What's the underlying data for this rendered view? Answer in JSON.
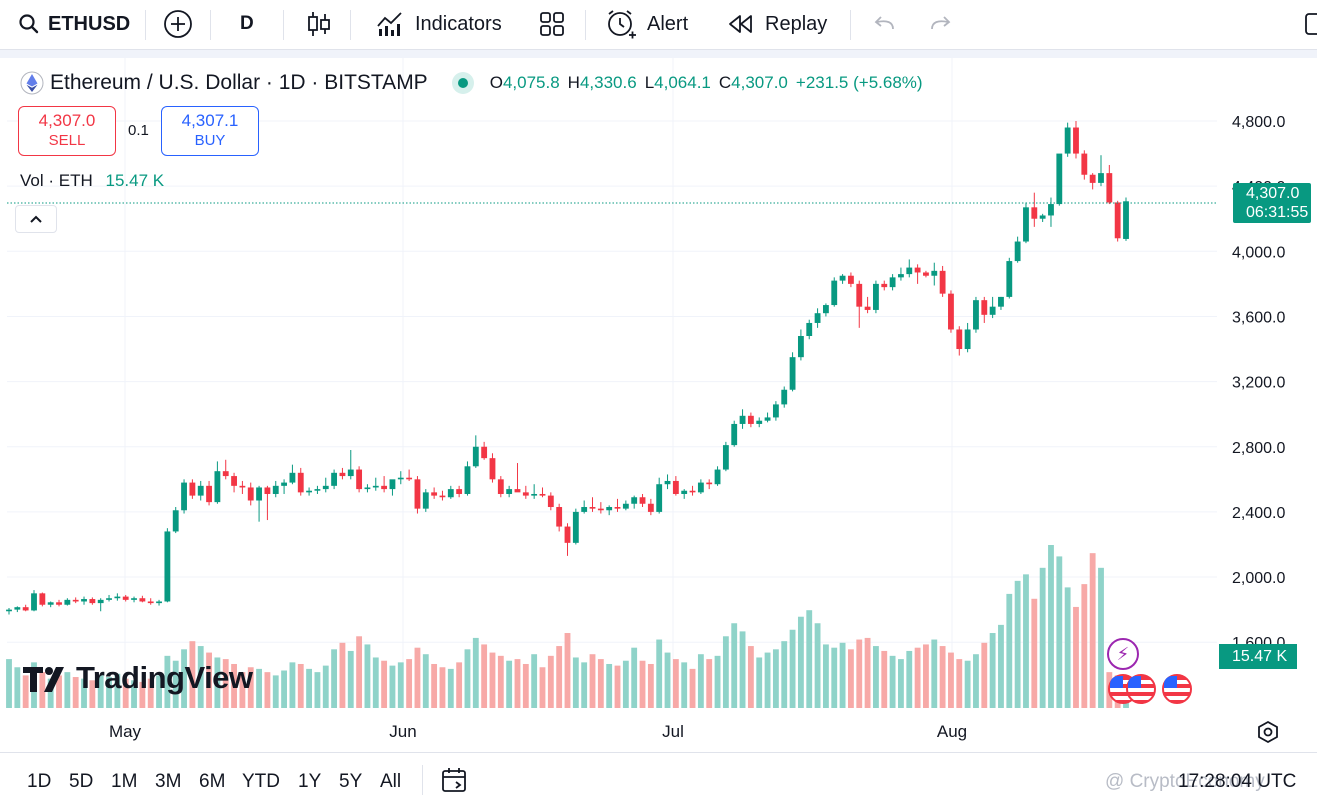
{
  "toolbar": {
    "symbol": "ETHUSD",
    "interval": "D",
    "indicators_label": "Indicators",
    "alert_label": "Alert",
    "replay_label": "Replay"
  },
  "legend": {
    "title": "Ethereum / U.S. Dollar · 1D · BITSTAMP",
    "o_key": "O",
    "o_val": "4,075.8",
    "h_key": "H",
    "h_val": "4,330.6",
    "l_key": "L",
    "l_val": "4,064.1",
    "c_key": "C",
    "c_val": "4,307.0",
    "change": "+231.5 (+5.68%)"
  },
  "trade": {
    "sell_price": "4,307.0",
    "sell_label": "SELL",
    "spread": "0.1",
    "buy_price": "4,307.1",
    "buy_label": "BUY"
  },
  "volume": {
    "label": "Vol · ETH",
    "value": "15.47 K"
  },
  "price_axis": {
    "ticks": [
      "4,800.0",
      "4,400.0",
      "4,000.0",
      "3,600.0",
      "3,200.0",
      "2,800.0",
      "2,400.0",
      "2,000.0",
      "1,600.0"
    ],
    "last_price": "4,307.0",
    "countdown": "06:31:55",
    "volume_label": "15.47 K"
  },
  "time_axis": {
    "labels": [
      "May",
      "Jun",
      "Jul",
      "Aug"
    ]
  },
  "logo": {
    "text": "TradingView"
  },
  "ranges": [
    "1D",
    "5D",
    "1M",
    "3M",
    "6M",
    "YTD",
    "1Y",
    "5Y",
    "All"
  ],
  "clock": "17:28:04 UTC",
  "watermark": "@ CryptoEconomy",
  "colors": {
    "up": "#089981",
    "down": "#f23645",
    "up_vol": "#8fd3c9",
    "down_vol": "#f7a9a7",
    "accent_blue": "#2962ff"
  },
  "chart_data": {
    "type": "candlestick",
    "x_labels": [
      "May",
      "Jun",
      "Jul",
      "Aug"
    ],
    "ylim": [
      1600,
      4800
    ],
    "candles": [
      [
        1790,
        1810,
        1770,
        1800
      ],
      [
        1800,
        1820,
        1785,
        1815
      ],
      [
        1815,
        1830,
        1790,
        1795
      ],
      [
        1795,
        1920,
        1790,
        1900
      ],
      [
        1900,
        1905,
        1820,
        1830
      ],
      [
        1830,
        1850,
        1815,
        1845
      ],
      [
        1845,
        1860,
        1820,
        1830
      ],
      [
        1830,
        1870,
        1825,
        1860
      ],
      [
        1860,
        1875,
        1840,
        1850
      ],
      [
        1850,
        1880,
        1830,
        1865
      ],
      [
        1865,
        1875,
        1830,
        1840
      ],
      [
        1840,
        1870,
        1790,
        1860
      ],
      [
        1860,
        1890,
        1850,
        1870
      ],
      [
        1870,
        1900,
        1855,
        1880
      ],
      [
        1880,
        1890,
        1850,
        1860
      ],
      [
        1860,
        1880,
        1845,
        1870
      ],
      [
        1870,
        1885,
        1845,
        1850
      ],
      [
        1850,
        1870,
        1830,
        1840
      ],
      [
        1840,
        1860,
        1825,
        1850
      ],
      [
        1850,
        2300,
        1845,
        2280
      ],
      [
        2280,
        2430,
        2270,
        2410
      ],
      [
        2410,
        2600,
        2390,
        2580
      ],
      [
        2580,
        2600,
        2480,
        2500
      ],
      [
        2500,
        2590,
        2470,
        2560
      ],
      [
        2560,
        2590,
        2440,
        2460
      ],
      [
        2460,
        2710,
        2450,
        2650
      ],
      [
        2650,
        2720,
        2600,
        2620
      ],
      [
        2620,
        2640,
        2520,
        2560
      ],
      [
        2560,
        2590,
        2510,
        2550
      ],
      [
        2550,
        2580,
        2440,
        2470
      ],
      [
        2470,
        2560,
        2340,
        2550
      ],
      [
        2550,
        2560,
        2350,
        2510
      ],
      [
        2510,
        2590,
        2490,
        2560
      ],
      [
        2560,
        2600,
        2510,
        2580
      ],
      [
        2580,
        2690,
        2570,
        2640
      ],
      [
        2640,
        2670,
        2500,
        2520
      ],
      [
        2520,
        2550,
        2500,
        2530
      ],
      [
        2530,
        2560,
        2510,
        2540
      ],
      [
        2540,
        2610,
        2520,
        2560
      ],
      [
        2560,
        2660,
        2540,
        2640
      ],
      [
        2640,
        2670,
        2600,
        2620
      ],
      [
        2620,
        2780,
        2600,
        2660
      ],
      [
        2660,
        2680,
        2520,
        2540
      ],
      [
        2540,
        2570,
        2520,
        2550
      ],
      [
        2550,
        2610,
        2530,
        2560
      ],
      [
        2560,
        2620,
        2520,
        2540
      ],
      [
        2540,
        2570,
        2500,
        2600
      ],
      [
        2600,
        2650,
        2570,
        2610
      ],
      [
        2610,
        2660,
        2590,
        2600
      ],
      [
        2600,
        2620,
        2390,
        2420
      ],
      [
        2420,
        2540,
        2400,
        2520
      ],
      [
        2520,
        2550,
        2480,
        2500
      ],
      [
        2500,
        2530,
        2470,
        2490
      ],
      [
        2490,
        2560,
        2480,
        2540
      ],
      [
        2540,
        2560,
        2490,
        2510
      ],
      [
        2510,
        2710,
        2500,
        2680
      ],
      [
        2680,
        2870,
        2670,
        2800
      ],
      [
        2800,
        2830,
        2720,
        2730
      ],
      [
        2730,
        2760,
        2580,
        2600
      ],
      [
        2600,
        2620,
        2490,
        2510
      ],
      [
        2510,
        2560,
        2490,
        2540
      ],
      [
        2540,
        2700,
        2530,
        2520
      ],
      [
        2520,
        2560,
        2480,
        2500
      ],
      [
        2500,
        2570,
        2480,
        2510
      ],
      [
        2510,
        2550,
        2490,
        2500
      ],
      [
        2500,
        2520,
        2410,
        2430
      ],
      [
        2430,
        2450,
        2280,
        2310
      ],
      [
        2310,
        2330,
        2130,
        2210
      ],
      [
        2210,
        2420,
        2200,
        2400
      ],
      [
        2400,
        2470,
        2390,
        2430
      ],
      [
        2430,
        2490,
        2400,
        2420
      ],
      [
        2420,
        2460,
        2390,
        2410
      ],
      [
        2410,
        2440,
        2380,
        2430
      ],
      [
        2430,
        2480,
        2400,
        2420
      ],
      [
        2420,
        2470,
        2410,
        2450
      ],
      [
        2450,
        2500,
        2420,
        2490
      ],
      [
        2490,
        2510,
        2430,
        2450
      ],
      [
        2450,
        2480,
        2380,
        2400
      ],
      [
        2400,
        2610,
        2390,
        2570
      ],
      [
        2570,
        2630,
        2540,
        2590
      ],
      [
        2590,
        2620,
        2500,
        2510
      ],
      [
        2510,
        2540,
        2480,
        2530
      ],
      [
        2530,
        2560,
        2500,
        2520
      ],
      [
        2520,
        2600,
        2510,
        2580
      ],
      [
        2580,
        2600,
        2540,
        2570
      ],
      [
        2570,
        2680,
        2560,
        2660
      ],
      [
        2660,
        2830,
        2650,
        2810
      ],
      [
        2810,
        2960,
        2800,
        2940
      ],
      [
        2940,
        3030,
        2910,
        2990
      ],
      [
        2990,
        3010,
        2920,
        2940
      ],
      [
        2940,
        2980,
        2920,
        2960
      ],
      [
        2960,
        3010,
        2950,
        2980
      ],
      [
        2980,
        3080,
        2960,
        3060
      ],
      [
        3060,
        3170,
        3040,
        3150
      ],
      [
        3150,
        3380,
        3140,
        3350
      ],
      [
        3350,
        3520,
        3330,
        3480
      ],
      [
        3480,
        3580,
        3460,
        3560
      ],
      [
        3560,
        3650,
        3530,
        3620
      ],
      [
        3620,
        3680,
        3600,
        3670
      ],
      [
        3670,
        3840,
        3660,
        3820
      ],
      [
        3820,
        3860,
        3800,
        3850
      ],
      [
        3850,
        3870,
        3780,
        3800
      ],
      [
        3800,
        3820,
        3530,
        3660
      ],
      [
        3660,
        3720,
        3620,
        3640
      ],
      [
        3640,
        3820,
        3620,
        3800
      ],
      [
        3800,
        3820,
        3760,
        3780
      ],
      [
        3780,
        3860,
        3760,
        3840
      ],
      [
        3840,
        3900,
        3820,
        3860
      ],
      [
        3860,
        3950,
        3840,
        3900
      ],
      [
        3900,
        3920,
        3800,
        3870
      ],
      [
        3870,
        3880,
        3840,
        3850
      ],
      [
        3850,
        3930,
        3790,
        3880
      ],
      [
        3880,
        3910,
        3720,
        3740
      ],
      [
        3740,
        3760,
        3500,
        3520
      ],
      [
        3520,
        3540,
        3360,
        3400
      ],
      [
        3400,
        3560,
        3380,
        3520
      ],
      [
        3520,
        3720,
        3500,
        3700
      ],
      [
        3700,
        3720,
        3560,
        3610
      ],
      [
        3610,
        3720,
        3590,
        3660
      ],
      [
        3660,
        3720,
        3640,
        3720
      ],
      [
        3720,
        3960,
        3710,
        3940
      ],
      [
        3940,
        4090,
        3930,
        4060
      ],
      [
        4060,
        4300,
        4050,
        4270
      ],
      [
        4270,
        4360,
        4150,
        4200
      ],
      [
        4200,
        4230,
        4180,
        4220
      ],
      [
        4220,
        4330,
        4150,
        4290
      ],
      [
        4290,
        4580,
        4280,
        4600
      ],
      [
        4600,
        4790,
        4580,
        4760
      ],
      [
        4760,
        4800,
        4570,
        4600
      ],
      [
        4600,
        4620,
        4440,
        4470
      ],
      [
        4470,
        4480,
        4380,
        4420
      ],
      [
        4420,
        4590,
        4400,
        4480
      ],
      [
        4480,
        4530,
        4290,
        4300
      ],
      [
        4300,
        4310,
        4060,
        4080
      ],
      [
        4075.8,
        4330.6,
        4064.1,
        4307.0
      ]
    ],
    "volumes": [
      0.3,
      0.25,
      0.2,
      0.28,
      0.22,
      0.18,
      0.2,
      0.22,
      0.19,
      0.18,
      0.17,
      0.2,
      0.19,
      0.21,
      0.18,
      0.17,
      0.16,
      0.18,
      0.2,
      0.32,
      0.29,
      0.36,
      0.41,
      0.38,
      0.34,
      0.31,
      0.3,
      0.27,
      0.22,
      0.25,
      0.24,
      0.22,
      0.2,
      0.23,
      0.28,
      0.27,
      0.24,
      0.22,
      0.26,
      0.36,
      0.4,
      0.35,
      0.44,
      0.39,
      0.31,
      0.29,
      0.26,
      0.28,
      0.3,
      0.37,
      0.33,
      0.27,
      0.25,
      0.24,
      0.28,
      0.36,
      0.43,
      0.39,
      0.34,
      0.32,
      0.29,
      0.3,
      0.27,
      0.33,
      0.25,
      0.32,
      0.38,
      0.46,
      0.31,
      0.28,
      0.33,
      0.3,
      0.27,
      0.26,
      0.29,
      0.37,
      0.29,
      0.27,
      0.42,
      0.34,
      0.3,
      0.28,
      0.24,
      0.33,
      0.3,
      0.32,
      0.44,
      0.52,
      0.47,
      0.38,
      0.31,
      0.34,
      0.36,
      0.41,
      0.48,
      0.56,
      0.6,
      0.52,
      0.39,
      0.37,
      0.4,
      0.36,
      0.42,
      0.43,
      0.38,
      0.35,
      0.32,
      0.3,
      0.35,
      0.37,
      0.39,
      0.42,
      0.38,
      0.34,
      0.3,
      0.29,
      0.33,
      0.4,
      0.46,
      0.51,
      0.7,
      0.78,
      0.82,
      0.67,
      0.86,
      1.0,
      0.93,
      0.74,
      0.62,
      0.76,
      0.95,
      0.86,
      0.22
    ]
  }
}
